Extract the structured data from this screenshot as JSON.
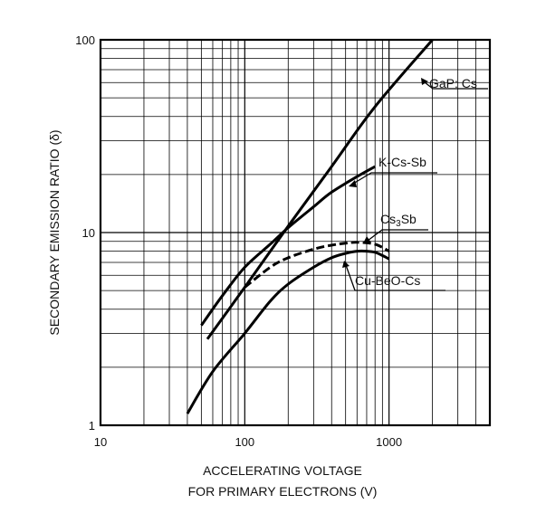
{
  "chart_data": {
    "type": "line",
    "title": "",
    "xlabel_line1": "ACCELERATING VOLTAGE",
    "xlabel_line2": "FOR PRIMARY ELECTRONS (V)",
    "ylabel": "SECONDARY EMISSION RATIO (δ)",
    "x_scale": "log",
    "y_scale": "log",
    "xlim": [
      10,
      5000
    ],
    "ylim": [
      1,
      100
    ],
    "grid": true,
    "x_tick_labels": [
      "10",
      "100",
      "1000"
    ],
    "x_tick_values": [
      10,
      100,
      1000
    ],
    "y_tick_labels": [
      "1",
      "10",
      "100"
    ],
    "y_tick_values": [
      1,
      10,
      100
    ],
    "series": [
      {
        "name": "GaP: Cs",
        "style": "solid",
        "x": [
          55,
          100,
          200,
          400,
          800,
          2000
        ],
        "y": [
          2.8,
          5.2,
          10.8,
          22,
          45,
          100
        ]
      },
      {
        "name": "K-Cs-Sb",
        "style": "solid",
        "x": [
          50,
          70,
          100,
          150,
          200,
          300,
          400,
          600,
          800
        ],
        "y": [
          3.3,
          4.7,
          6.6,
          8.7,
          10.6,
          13.6,
          16.2,
          19.5,
          22
        ]
      },
      {
        "name": "Cs3Sb",
        "label_main": "Cs",
        "label_sub": "3",
        "label_end": "Sb",
        "style": "dashed",
        "x": [
          100,
          150,
          200,
          300,
          400,
          500,
          600,
          800,
          1000
        ],
        "y": [
          5.2,
          6.6,
          7.4,
          8.2,
          8.6,
          8.8,
          8.9,
          8.7,
          8.0
        ]
      },
      {
        "name": "Cu-BeO-Cs",
        "style": "solid",
        "x": [
          40,
          60,
          100,
          150,
          200,
          300,
          400,
          500,
          600,
          700,
          800,
          900,
          1000
        ],
        "y": [
          1.15,
          1.9,
          3.0,
          4.4,
          5.4,
          6.6,
          7.4,
          7.8,
          8.0,
          8.0,
          7.9,
          7.6,
          7.3
        ]
      }
    ]
  }
}
